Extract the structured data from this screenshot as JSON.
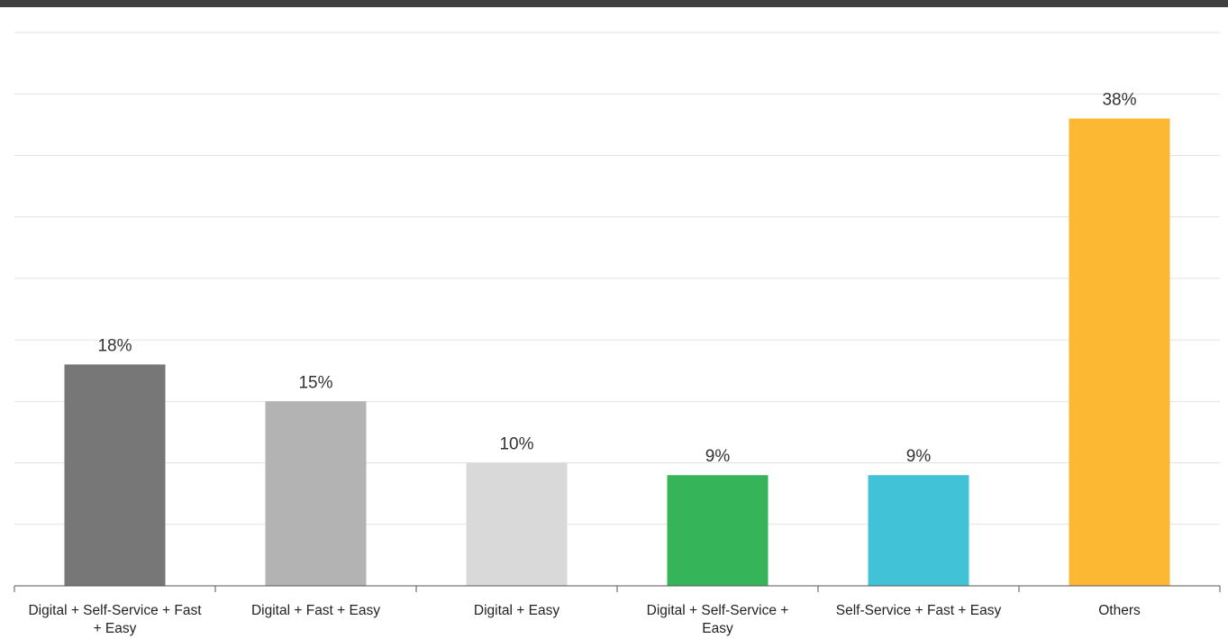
{
  "chart_data": {
    "type": "bar",
    "categories": [
      [
        "Digital + Self-Service + Fast",
        "+ Easy"
      ],
      [
        "Digital + Fast + Easy"
      ],
      [
        "Digital + Easy"
      ],
      [
        "Digital + Self-Service +",
        "Easy"
      ],
      [
        "Self-Service + Fast + Easy"
      ],
      [
        "Others"
      ]
    ],
    "values": [
      18,
      15,
      10,
      9,
      9,
      38
    ],
    "value_labels": [
      "18%",
      "15%",
      "10%",
      "9%",
      "9%",
      "38%"
    ],
    "bar_colors": [
      "#777777",
      "#b3b3b3",
      "#d9d9d9",
      "#36b45a",
      "#42c2d6",
      "#fdb833"
    ],
    "ylim": [
      0,
      45
    ],
    "grid": true,
    "xlabel": "",
    "ylabel": ""
  }
}
